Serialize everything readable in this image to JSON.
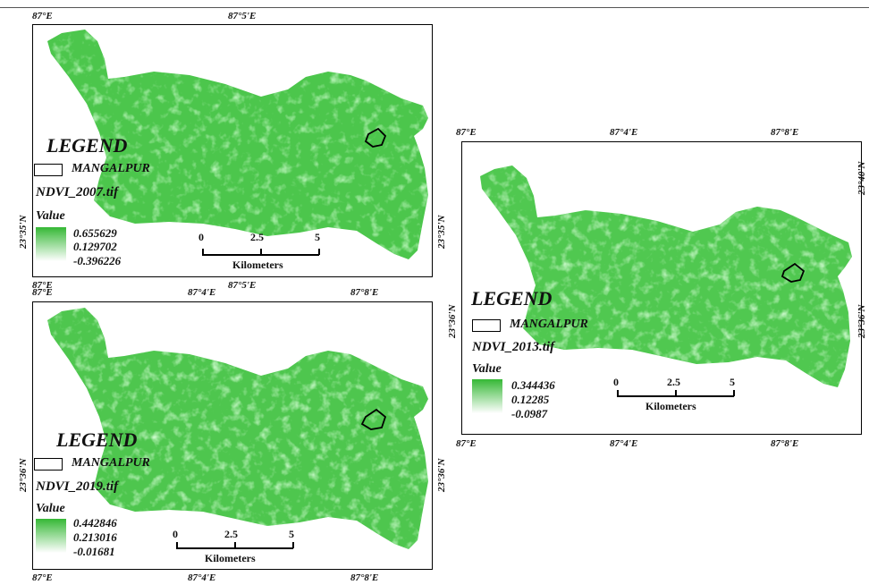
{
  "colors": {
    "ndvi_high": "#35b835",
    "ndvi_low": "#ffffff",
    "frame": "#000000"
  },
  "common": {
    "legend_title": "LEGEND",
    "boundary_label": "MANGALPUR",
    "value_heading": "Value",
    "scale": {
      "ticks": [
        "0",
        "2.5",
        "5"
      ],
      "unit": "Kilometers"
    }
  },
  "panels": {
    "p2007": {
      "raster": "NDVI_2007.tif",
      "values": [
        "0.655629",
        "0.129702",
        "-0.396226"
      ],
      "top_ticks": [
        "87°E",
        "87°5'E"
      ],
      "bottom_ticks": [
        "87°E",
        "87°5'E"
      ],
      "left_tick": "23°35'N",
      "right_tick": "23°35'N"
    },
    "p2013": {
      "raster": "NDVI_2013.tif",
      "values": [
        "0.344436",
        "0.12285",
        "-0.0987"
      ],
      "top_ticks": [
        "87°E",
        "87°4'E",
        "87°8'E"
      ],
      "bottom_ticks": [
        "87°E",
        "87°4'E",
        "87°8'E"
      ],
      "left_tick": "23°36'N",
      "right_ticks": [
        "23°40'N",
        "23°36'N"
      ]
    },
    "p2019": {
      "raster": "NDVI_2019.tif",
      "values": [
        "0.442846",
        "0.213016",
        "-0.01681"
      ],
      "top_ticks": [
        "87°E",
        "87°4'E",
        "87°8'E"
      ],
      "bottom_ticks": [
        "87°E",
        "87°4'E",
        "87°8'E"
      ],
      "left_tick": "23°36'N",
      "right_tick": "23°36'N"
    }
  }
}
